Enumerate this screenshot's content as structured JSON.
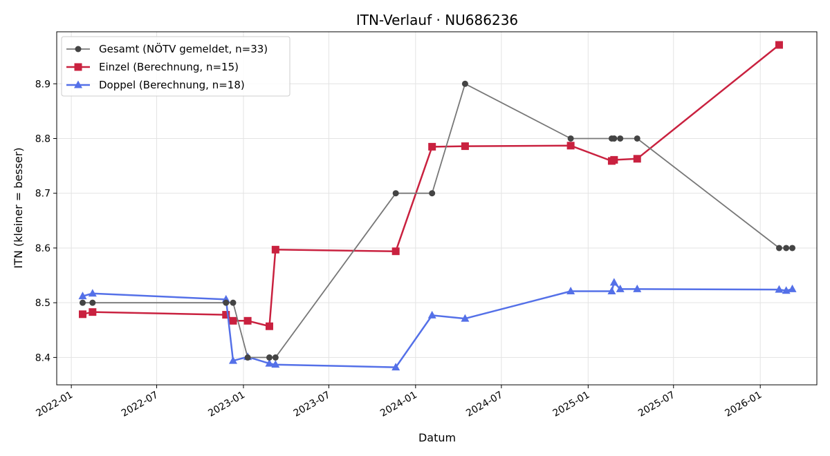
{
  "chart_data": {
    "type": "line",
    "title": "ITN-Verlauf · NU686236",
    "xlabel": "Datum",
    "ylabel": "ITN  (kleiner = besser)",
    "x_type": "date",
    "xlim": [
      "2021-12-01",
      "2026-05-01"
    ],
    "ylim": [
      8.35,
      8.995
    ],
    "x_ticks": [
      "2022-01-01",
      "2022-07-01",
      "2023-01-01",
      "2023-07-01",
      "2024-01-01",
      "2024-07-01",
      "2025-01-01",
      "2025-07-01",
      "2026-01-01"
    ],
    "x_tick_labels": [
      "2022-01",
      "2022-07",
      "2023-01",
      "2023-07",
      "2024-01",
      "2024-07",
      "2025-01",
      "2025-07",
      "2026-01"
    ],
    "y_ticks": [
      8.4,
      8.5,
      8.6,
      8.7,
      8.8,
      8.9
    ],
    "y_tick_labels": [
      "8.4",
      "8.5",
      "8.6",
      "8.7",
      "8.8",
      "8.9"
    ],
    "grid": true,
    "legend_position": "top-left",
    "series": [
      {
        "name": "Gesamt (NÖTV gemeldet, n=33)",
        "color": "#777777",
        "marker": "circle",
        "points": [
          [
            "2022-01-25",
            8.5
          ],
          [
            "2022-02-15",
            8.5
          ],
          [
            "2022-11-25",
            8.5
          ],
          [
            "2022-12-10",
            8.5
          ],
          [
            "2023-01-10",
            8.4
          ],
          [
            "2023-02-25",
            8.4
          ],
          [
            "2023-03-10",
            8.4
          ],
          [
            "2023-11-20",
            8.7
          ],
          [
            "2024-02-05",
            8.7
          ],
          [
            "2024-04-15",
            8.9
          ],
          [
            "2024-11-25",
            8.8
          ],
          [
            "2025-02-20",
            8.8
          ],
          [
            "2025-02-25",
            8.8
          ],
          [
            "2025-03-10",
            8.8
          ],
          [
            "2025-04-15",
            8.8
          ],
          [
            "2026-02-10",
            8.6
          ],
          [
            "2026-02-25",
            8.6
          ],
          [
            "2026-03-10",
            8.6
          ]
        ]
      },
      {
        "name": "Einzel (Berechnung, n=15)",
        "color": "#c9213f",
        "marker": "square",
        "points": [
          [
            "2022-01-25",
            8.479
          ],
          [
            "2022-02-15",
            8.483
          ],
          [
            "2022-11-25",
            8.478
          ],
          [
            "2022-12-10",
            8.467
          ],
          [
            "2023-01-10",
            8.467
          ],
          [
            "2023-02-25",
            8.457
          ],
          [
            "2023-03-10",
            8.597
          ],
          [
            "2023-11-20",
            8.594
          ],
          [
            "2024-02-05",
            8.785
          ],
          [
            "2024-04-15",
            8.786
          ],
          [
            "2024-11-25",
            8.787
          ],
          [
            "2025-02-20",
            8.759
          ],
          [
            "2025-02-25",
            8.761
          ],
          [
            "2025-04-15",
            8.763
          ],
          [
            "2026-02-10",
            8.971
          ]
        ]
      },
      {
        "name": "Doppel (Berechnung, n=18)",
        "color": "#5470e8",
        "marker": "triangle",
        "points": [
          [
            "2022-01-25",
            8.512
          ],
          [
            "2022-02-15",
            8.517
          ],
          [
            "2022-11-25",
            8.506
          ],
          [
            "2022-12-10",
            8.394
          ],
          [
            "2023-01-10",
            8.401
          ],
          [
            "2023-02-25",
            8.389
          ],
          [
            "2023-03-10",
            8.387
          ],
          [
            "2023-11-20",
            8.382
          ],
          [
            "2024-02-05",
            8.477
          ],
          [
            "2024-04-15",
            8.471
          ],
          [
            "2024-11-25",
            8.521
          ],
          [
            "2025-02-20",
            8.521
          ],
          [
            "2025-02-25",
            8.537
          ],
          [
            "2025-03-10",
            8.525
          ],
          [
            "2025-04-15",
            8.525
          ],
          [
            "2026-02-10",
            8.524
          ],
          [
            "2026-02-25",
            8.522
          ],
          [
            "2026-03-10",
            8.525
          ]
        ]
      }
    ]
  }
}
